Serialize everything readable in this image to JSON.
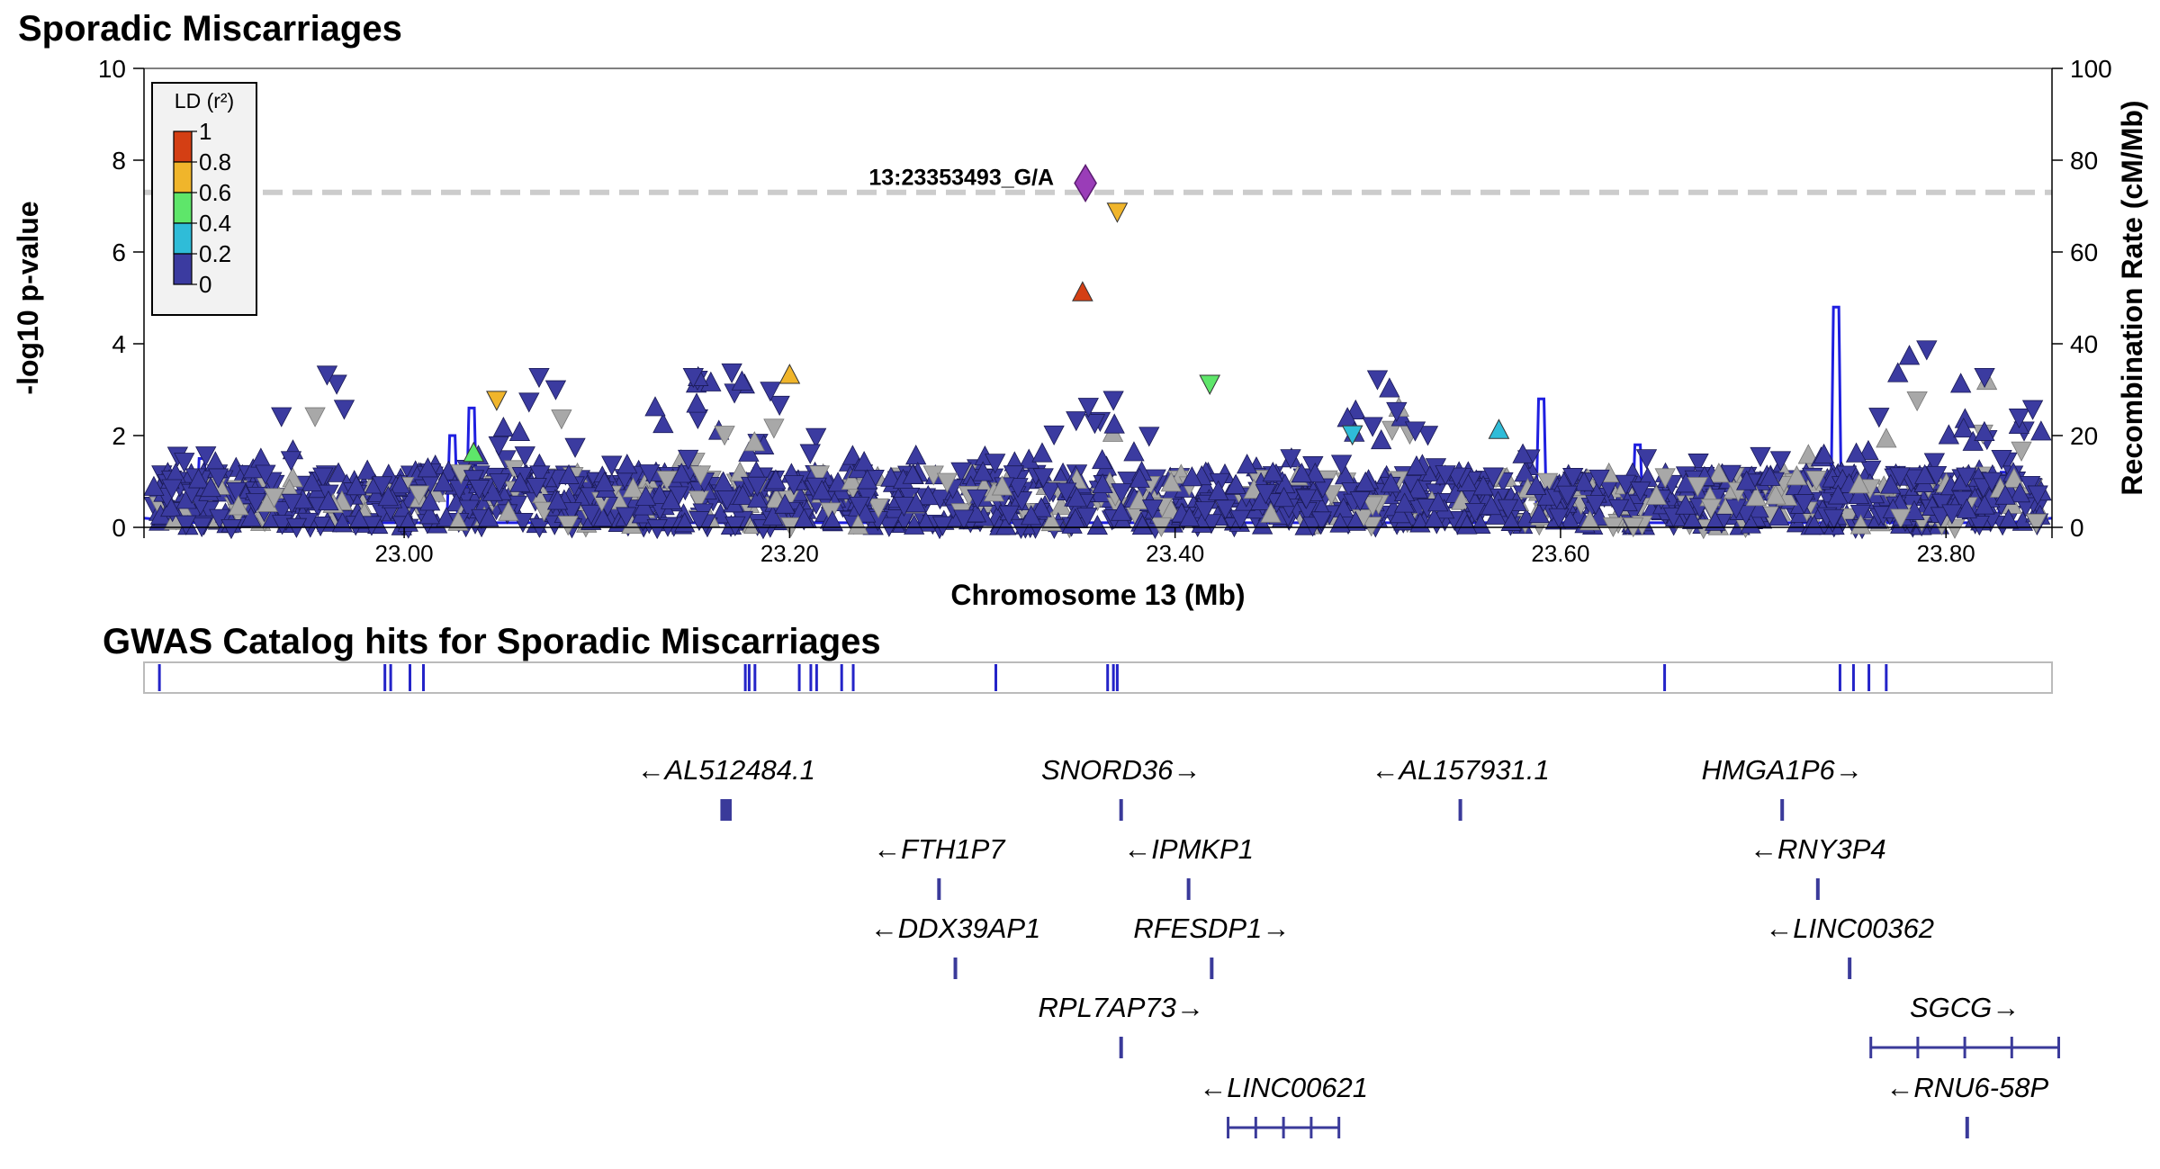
{
  "chart_data": [
    {
      "type": "scatter",
      "title": "Sporadic Miscarriages",
      "xlabel": "Chromosome 13 (Mb)",
      "ylabel": "-log10 p-value",
      "y2label": "Recombination Rate (cM/Mb)",
      "xlim": [
        22.865,
        23.855
      ],
      "ylim": [
        0,
        10
      ],
      "y2lim": [
        0,
        100
      ],
      "xticks": [
        "23.00",
        "23.20",
        "23.40",
        "23.60",
        "23.80"
      ],
      "xtick_values": [
        23.0,
        23.2,
        23.4,
        23.6,
        23.8
      ],
      "yticks": [
        "0",
        "2",
        "4",
        "6",
        "8",
        "10"
      ],
      "y2ticks": [
        "0",
        "20",
        "40",
        "60",
        "80",
        "100"
      ],
      "significance_line": 7.3,
      "legend": {
        "title": "LD (r²)",
        "placement": "top-left",
        "labels": [
          "1",
          "0.8",
          "0.6",
          "0.4",
          "0.2",
          "0"
        ],
        "colors": [
          "#d43f14",
          "#f0b52b",
          "#5ee66a",
          "#2fbcd8",
          "#3b3ba0"
        ]
      },
      "lead_snp": {
        "label": "13:23353493_G/A",
        "x": 23.3535,
        "y": 7.5,
        "color": "#9a3db8"
      },
      "highlighted_points": [
        {
          "x": 23.352,
          "y": 5.1,
          "ld": "1",
          "shape": "up",
          "color": "#d43f14"
        },
        {
          "x": 23.37,
          "y": 6.9,
          "ld": "0.8",
          "shape": "down",
          "color": "#f0b52b"
        },
        {
          "x": 23.2,
          "y": 3.3,
          "ld": "0.8",
          "shape": "up",
          "color": "#f0b52b"
        },
        {
          "x": 23.048,
          "y": 2.8,
          "ld": "0.8",
          "shape": "down",
          "color": "#f0b52b"
        },
        {
          "x": 23.418,
          "y": 3.15,
          "ld": "0.6",
          "shape": "down",
          "color": "#5ee66a"
        },
        {
          "x": 23.036,
          "y": 1.6,
          "ld": "0.6",
          "shape": "up",
          "color": "#5ee66a"
        },
        {
          "x": 23.492,
          "y": 2.05,
          "ld": "0.4",
          "shape": "down",
          "color": "#2fbcd8"
        },
        {
          "x": 23.568,
          "y": 2.1,
          "ld": "0.4",
          "shape": "up",
          "color": "#2fbcd8"
        }
      ],
      "background_points_ld_0_peaks": [
        {
          "x": 22.96,
          "y": 3.35
        },
        {
          "x": 23.07,
          "y": 3.3
        },
        {
          "x": 23.15,
          "y": 3.3
        },
        {
          "x": 23.17,
          "y": 3.4
        },
        {
          "x": 23.19,
          "y": 3.0
        },
        {
          "x": 23.355,
          "y": 2.65
        },
        {
          "x": 23.368,
          "y": 2.8
        },
        {
          "x": 23.505,
          "y": 3.25
        },
        {
          "x": 23.79,
          "y": 3.9
        },
        {
          "x": 23.82,
          "y": 3.3
        },
        {
          "x": 23.845,
          "y": 2.6
        }
      ],
      "recombination_peaks": [
        {
          "x": 22.895,
          "y": 15
        },
        {
          "x": 23.025,
          "y": 20
        },
        {
          "x": 23.035,
          "y": 26
        },
        {
          "x": 23.59,
          "y": 28
        },
        {
          "x": 23.64,
          "y": 18
        },
        {
          "x": 23.743,
          "y": 48
        },
        {
          "x": 23.83,
          "y": 12
        }
      ]
    },
    {
      "type": "table",
      "title": "GWAS Catalog hits for Sporadic Miscarriages",
      "hit_positions": [
        22.873,
        22.99,
        22.993,
        23.003,
        23.01,
        23.177,
        23.179,
        23.182,
        23.205,
        23.211,
        23.214,
        23.227,
        23.233,
        23.307,
        23.365,
        23.368,
        23.37,
        23.654,
        23.745,
        23.752,
        23.76,
        23.769
      ]
    },
    {
      "type": "table",
      "title": "",
      "genes": [
        {
          "name": "←AL512484.1",
          "x": 23.165,
          "width": 0.004,
          "row": 0
        },
        {
          "name": "SNORD36→",
          "x": 23.372,
          "width": 0.0,
          "row": 0
        },
        {
          "name": "←AL157931.1",
          "x": 23.548,
          "width": 0.0,
          "row": 0
        },
        {
          "name": "HMGA1P6→",
          "x": 23.715,
          "width": 0.0,
          "row": 0
        },
        {
          "name": "←FTH1P7",
          "x": 23.2775,
          "width": 0.0,
          "row": 1
        },
        {
          "name": "←IPMKP1",
          "x": 23.407,
          "width": 0.0,
          "row": 1
        },
        {
          "name": "←RNY3P4",
          "x": 23.7335,
          "width": 0.0,
          "row": 1
        },
        {
          "name": "←DDX39AP1",
          "x": 23.286,
          "width": 0.0,
          "row": 2
        },
        {
          "name": "RFESDP1→",
          "x": 23.419,
          "width": 0.0,
          "row": 2
        },
        {
          "name": "←LINC00362",
          "x": 23.75,
          "width": 0.0,
          "row": 2
        },
        {
          "name": "RPL7AP73→",
          "x": 23.372,
          "width": 0.0,
          "row": 3
        },
        {
          "name": "SGCG→",
          "x": 23.761,
          "width": 0.0975,
          "row": 3
        },
        {
          "name": "←LINC00621",
          "x": 23.4275,
          "width": 0.0575,
          "row": 4
        },
        {
          "name": "←RNU6-58P",
          "x": 23.811,
          "width": 0.0,
          "row": 4
        }
      ]
    }
  ],
  "colors": {
    "ld_0": "#3b3ba0",
    "no_ld": "#a8a8a8",
    "recombination_line": "#1f1fe0",
    "gene_color": "#3a3a9a",
    "sig_line": "#cccccc"
  }
}
